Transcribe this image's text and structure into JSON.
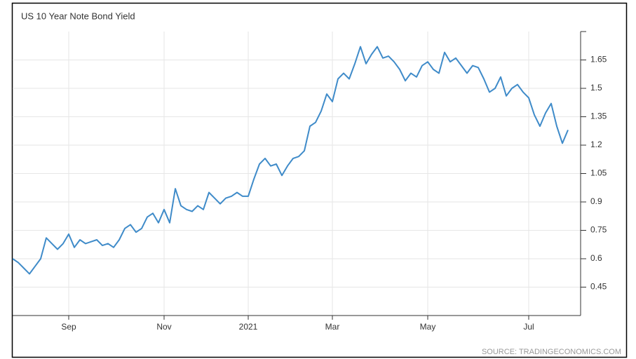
{
  "chart_data": {
    "type": "line",
    "title": "US 10 Year Note Bond Yield",
    "source": "SOURCE: TRADINGECONOMICS.COM",
    "categories": [
      null,
      null,
      null,
      null,
      null,
      null,
      null,
      null,
      null,
      null,
      "Sep",
      null,
      null,
      null,
      null,
      null,
      null,
      null,
      null,
      null,
      null,
      null,
      null,
      null,
      null,
      null,
      null,
      "Nov",
      null,
      null,
      null,
      null,
      null,
      null,
      null,
      null,
      null,
      null,
      null,
      null,
      null,
      null,
      "2021",
      null,
      null,
      null,
      null,
      null,
      null,
      null,
      null,
      null,
      null,
      null,
      null,
      null,
      null,
      "Mar",
      null,
      null,
      null,
      null,
      null,
      null,
      null,
      null,
      null,
      null,
      null,
      null,
      null,
      null,
      null,
      null,
      "May",
      null,
      null,
      null,
      null,
      null,
      null,
      null,
      null,
      null,
      null,
      null,
      null,
      null,
      null,
      null,
      null,
      null,
      "Jul",
      null,
      null,
      null,
      null,
      null,
      null,
      null
    ],
    "series": [
      {
        "name": "US 10Y",
        "color": "#3f8bc9",
        "values": [
          0.6,
          0.58,
          0.55,
          0.52,
          0.56,
          0.6,
          0.71,
          0.68,
          0.65,
          0.68,
          0.73,
          0.66,
          0.7,
          0.68,
          0.69,
          0.7,
          0.67,
          0.68,
          0.66,
          0.7,
          0.76,
          0.78,
          0.74,
          0.76,
          0.82,
          0.84,
          0.79,
          0.86,
          0.79,
          0.97,
          0.88,
          0.86,
          0.85,
          0.88,
          0.86,
          0.95,
          0.92,
          0.89,
          0.92,
          0.93,
          0.95,
          0.93,
          0.93,
          1.02,
          1.1,
          1.13,
          1.09,
          1.1,
          1.04,
          1.09,
          1.13,
          1.14,
          1.17,
          1.3,
          1.32,
          1.38,
          1.47,
          1.43,
          1.55,
          1.58,
          1.55,
          1.63,
          1.72,
          1.63,
          1.68,
          1.72,
          1.66,
          1.67,
          1.64,
          1.6,
          1.54,
          1.58,
          1.56,
          1.62,
          1.64,
          1.6,
          1.58,
          1.69,
          1.64,
          1.66,
          1.62,
          1.58,
          1.62,
          1.61,
          1.55,
          1.48,
          1.5,
          1.56,
          1.46,
          1.5,
          1.52,
          1.48,
          1.45,
          1.36,
          1.3,
          1.37,
          1.42,
          1.3,
          1.21,
          1.28
        ]
      }
    ],
    "ylim": [
      0.3,
      1.8
    ],
    "yticks": [
      0.45,
      0.6,
      0.75,
      0.9,
      1.05,
      1.2,
      1.35,
      1.5,
      1.65
    ],
    "grid": true
  }
}
